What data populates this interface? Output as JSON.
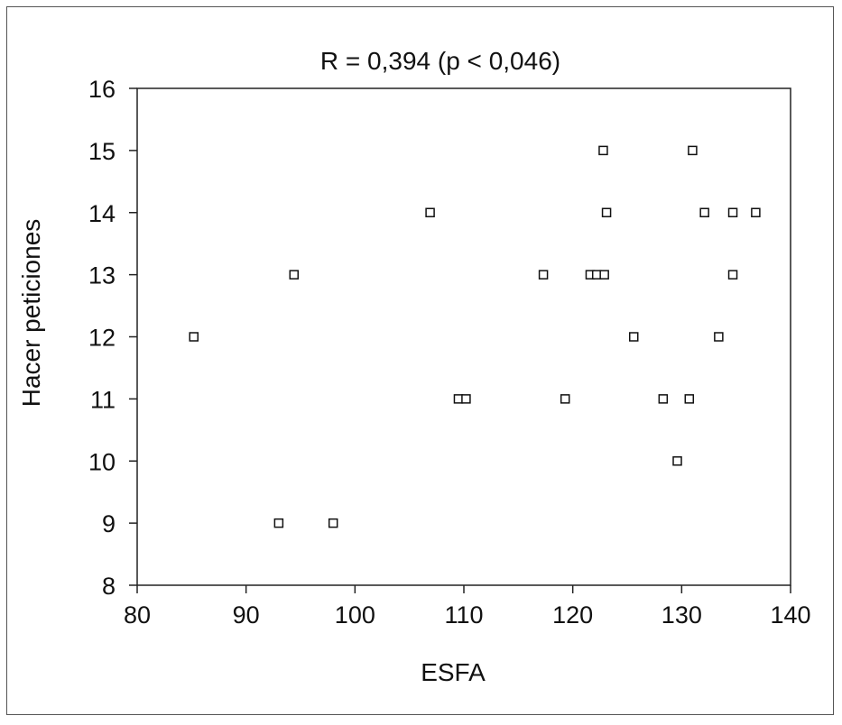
{
  "chart_data": {
    "type": "scatter",
    "title": "R = 0,394 (p < 0,046)",
    "xlabel": "ESFA",
    "ylabel": "Hacer peticiones",
    "xlim": [
      80,
      140
    ],
    "ylim": [
      8,
      16
    ],
    "x_ticks": [
      "80",
      "90",
      "100",
      "110",
      "120",
      "130",
      "140"
    ],
    "y_ticks": [
      "8",
      "9",
      "10",
      "11",
      "12",
      "13",
      "14",
      "15",
      "16"
    ],
    "marker": "open-square",
    "grid": false,
    "legend": "none",
    "points": [
      {
        "x": 85.2,
        "y": 12
      },
      {
        "x": 93.0,
        "y": 9
      },
      {
        "x": 94.4,
        "y": 13
      },
      {
        "x": 98.0,
        "y": 9
      },
      {
        "x": 106.9,
        "y": 14
      },
      {
        "x": 109.5,
        "y": 11
      },
      {
        "x": 110.2,
        "y": 11
      },
      {
        "x": 117.3,
        "y": 13
      },
      {
        "x": 119.3,
        "y": 11
      },
      {
        "x": 121.6,
        "y": 13
      },
      {
        "x": 122.2,
        "y": 13
      },
      {
        "x": 122.8,
        "y": 15
      },
      {
        "x": 122.9,
        "y": 13
      },
      {
        "x": 123.1,
        "y": 14
      },
      {
        "x": 125.6,
        "y": 12
      },
      {
        "x": 128.3,
        "y": 11
      },
      {
        "x": 129.6,
        "y": 10
      },
      {
        "x": 130.7,
        "y": 11
      },
      {
        "x": 131.0,
        "y": 15
      },
      {
        "x": 132.1,
        "y": 14
      },
      {
        "x": 133.4,
        "y": 12
      },
      {
        "x": 134.7,
        "y": 14
      },
      {
        "x": 134.7,
        "y": 13
      },
      {
        "x": 136.8,
        "y": 14
      }
    ]
  }
}
